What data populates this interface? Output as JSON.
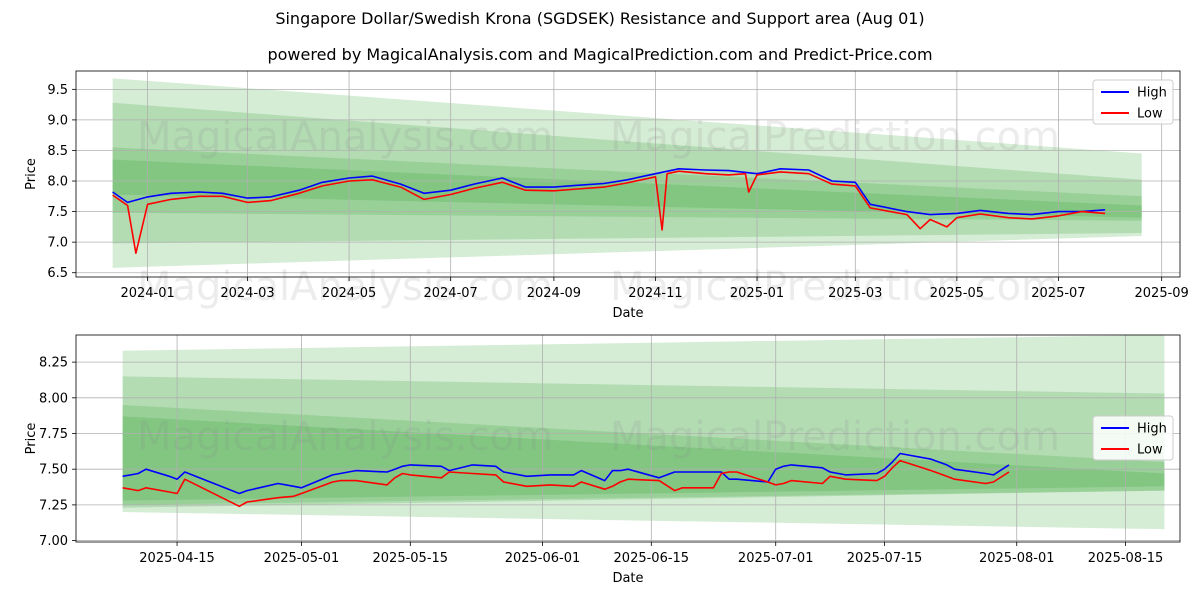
{
  "title": "Singapore Dollar/Swedish Krona (SGDSEK) Resistance and Support area (Aug 01)",
  "subtitle": "powered by MagicalAnalysis.com and MagicalPrediction.com and Predict-Price.com",
  "watermarks": [
    "MagicalAnalysis.com",
    "MagicalPrediction.com"
  ],
  "colors": {
    "high": "#0000ff",
    "low": "#ff0000",
    "band": "#2ca02c"
  },
  "chart_data": [
    {
      "type": "line",
      "xlabel": "Date",
      "ylabel": "Price",
      "grid": true,
      "legend": "top-right",
      "xlim": [
        "2023-11-19",
        "2025-09-12"
      ],
      "ylim": [
        6.43,
        9.8
      ],
      "x_ticks": [
        "2024-01",
        "2024-03",
        "2024-05",
        "2024-07",
        "2024-09",
        "2024-11",
        "2025-01",
        "2025-03",
        "2025-05",
        "2025-07",
        "2025-09"
      ],
      "y_ticks": [
        "6.5",
        "7.0",
        "7.5",
        "8.0",
        "8.5",
        "9.0",
        "9.5"
      ],
      "series": [
        {
          "name": "High",
          "x": [
            "2023-12-11",
            "2023-12-20",
            "2024-01-01",
            "2024-01-15",
            "2024-02-01",
            "2024-02-15",
            "2024-03-01",
            "2024-03-15",
            "2024-04-01",
            "2024-04-15",
            "2024-05-01",
            "2024-05-15",
            "2024-06-01",
            "2024-06-15",
            "2024-07-01",
            "2024-07-15",
            "2024-08-01",
            "2024-08-15",
            "2024-09-01",
            "2024-09-15",
            "2024-10-01",
            "2024-10-15",
            "2024-11-01",
            "2024-11-15",
            "2024-12-01",
            "2024-12-15",
            "2025-01-01",
            "2025-01-15",
            "2025-02-01",
            "2025-02-15",
            "2025-03-01",
            "2025-03-10",
            "2025-04-01",
            "2025-04-15",
            "2025-05-01",
            "2025-05-15",
            "2025-06-01",
            "2025-06-15",
            "2025-07-01",
            "2025-07-15",
            "2025-07-29"
          ],
          "values": [
            7.82,
            7.65,
            7.74,
            7.8,
            7.82,
            7.8,
            7.72,
            7.74,
            7.85,
            7.98,
            8.05,
            8.08,
            7.95,
            7.8,
            7.85,
            7.95,
            8.05,
            7.9,
            7.9,
            7.93,
            7.96,
            8.02,
            8.12,
            8.2,
            8.18,
            8.17,
            8.12,
            8.2,
            8.18,
            8.0,
            7.98,
            7.62,
            7.5,
            7.45,
            7.47,
            7.52,
            7.47,
            7.45,
            7.5,
            7.5,
            7.53
          ]
        },
        {
          "name": "Low",
          "x": [
            "2023-12-11",
            "2023-12-20",
            "2023-12-25",
            "2024-01-01",
            "2024-01-15",
            "2024-02-01",
            "2024-02-15",
            "2024-03-01",
            "2024-03-15",
            "2024-04-01",
            "2024-04-15",
            "2024-05-01",
            "2024-05-15",
            "2024-06-01",
            "2024-06-15",
            "2024-07-01",
            "2024-07-15",
            "2024-08-01",
            "2024-08-15",
            "2024-09-01",
            "2024-09-15",
            "2024-10-01",
            "2024-10-15",
            "2024-11-01",
            "2024-11-05",
            "2024-11-08",
            "2024-11-15",
            "2024-12-01",
            "2024-12-15",
            "2024-12-25",
            "2024-12-27",
            "2025-01-01",
            "2025-01-15",
            "2025-02-01",
            "2025-02-15",
            "2025-03-01",
            "2025-03-10",
            "2025-04-01",
            "2025-04-09",
            "2025-04-15",
            "2025-04-25",
            "2025-05-01",
            "2025-05-15",
            "2025-06-01",
            "2025-06-15",
            "2025-07-01",
            "2025-07-15",
            "2025-07-29"
          ],
          "values": [
            7.77,
            7.6,
            6.82,
            7.62,
            7.7,
            7.75,
            7.75,
            7.65,
            7.68,
            7.8,
            7.92,
            8.0,
            8.02,
            7.9,
            7.7,
            7.78,
            7.88,
            7.98,
            7.85,
            7.84,
            7.87,
            7.9,
            7.97,
            8.07,
            7.2,
            8.12,
            8.16,
            8.12,
            8.1,
            8.12,
            7.82,
            8.1,
            8.15,
            8.12,
            7.95,
            7.92,
            7.56,
            7.45,
            7.22,
            7.37,
            7.25,
            7.4,
            7.46,
            7.4,
            7.38,
            7.43,
            7.5,
            7.47
          ]
        }
      ]
    },
    {
      "type": "line",
      "xlabel": "Date",
      "ylabel": "Price",
      "grid": true,
      "legend": "center-right",
      "xlim": [
        "2025-04-02",
        "2025-08-22"
      ],
      "ylim": [
        6.99,
        8.44
      ],
      "x_ticks": [
        "2025-04-15",
        "2025-05-01",
        "2025-05-15",
        "2025-06-01",
        "2025-06-15",
        "2025-07-01",
        "2025-07-15",
        "2025-08-01",
        "2025-08-15"
      ],
      "y_ticks": [
        "7.00",
        "7.25",
        "7.50",
        "7.75",
        "8.00",
        "8.25"
      ],
      "series": [
        {
          "name": "High",
          "x": [
            "2025-04-08",
            "2025-04-10",
            "2025-04-11",
            "2025-04-14",
            "2025-04-15",
            "2025-04-16",
            "2025-04-23",
            "2025-04-24",
            "2025-04-28",
            "2025-04-30",
            "2025-05-01",
            "2025-05-05",
            "2025-05-06",
            "2025-05-08",
            "2025-05-12",
            "2025-05-13",
            "2025-05-14",
            "2025-05-15",
            "2025-05-19",
            "2025-05-20",
            "2025-05-23",
            "2025-05-26",
            "2025-05-27",
            "2025-05-30",
            "2025-06-02",
            "2025-06-05",
            "2025-06-06",
            "2025-06-09",
            "2025-06-10",
            "2025-06-11",
            "2025-06-12",
            "2025-06-16",
            "2025-06-18",
            "2025-06-19",
            "2025-06-23",
            "2025-06-24",
            "2025-06-25",
            "2025-06-26",
            "2025-06-30",
            "2025-07-01",
            "2025-07-02",
            "2025-07-03",
            "2025-07-07",
            "2025-07-08",
            "2025-07-10",
            "2025-07-14",
            "2025-07-15",
            "2025-07-16",
            "2025-07-17",
            "2025-07-21",
            "2025-07-23",
            "2025-07-24",
            "2025-07-28",
            "2025-07-29",
            "2025-07-31"
          ],
          "values": [
            7.45,
            7.47,
            7.5,
            7.45,
            7.43,
            7.48,
            7.33,
            7.35,
            7.4,
            7.38,
            7.37,
            7.46,
            7.47,
            7.49,
            7.48,
            7.5,
            7.52,
            7.53,
            7.52,
            7.49,
            7.53,
            7.52,
            7.48,
            7.45,
            7.46,
            7.46,
            7.49,
            7.42,
            7.49,
            7.49,
            7.5,
            7.44,
            7.48,
            7.48,
            7.48,
            7.48,
            7.43,
            7.43,
            7.41,
            7.5,
            7.52,
            7.53,
            7.51,
            7.48,
            7.46,
            7.47,
            7.5,
            7.55,
            7.61,
            7.57,
            7.53,
            7.5,
            7.47,
            7.46,
            7.53
          ]
        },
        {
          "name": "Low",
          "x": [
            "2025-04-08",
            "2025-04-10",
            "2025-04-11",
            "2025-04-14",
            "2025-04-15",
            "2025-04-16",
            "2025-04-23",
            "2025-04-24",
            "2025-04-28",
            "2025-04-30",
            "2025-05-01",
            "2025-05-05",
            "2025-05-06",
            "2025-05-08",
            "2025-05-12",
            "2025-05-13",
            "2025-05-14",
            "2025-05-15",
            "2025-05-19",
            "2025-05-20",
            "2025-05-23",
            "2025-05-26",
            "2025-05-27",
            "2025-05-30",
            "2025-06-02",
            "2025-06-05",
            "2025-06-06",
            "2025-06-09",
            "2025-06-10",
            "2025-06-11",
            "2025-06-12",
            "2025-06-16",
            "2025-06-18",
            "2025-06-19",
            "2025-06-23",
            "2025-06-24",
            "2025-06-25",
            "2025-06-26",
            "2025-06-30",
            "2025-07-01",
            "2025-07-02",
            "2025-07-03",
            "2025-07-07",
            "2025-07-08",
            "2025-07-10",
            "2025-07-14",
            "2025-07-15",
            "2025-07-16",
            "2025-07-17",
            "2025-07-21",
            "2025-07-23",
            "2025-07-24",
            "2025-07-28",
            "2025-07-29",
            "2025-07-31"
          ],
          "values": [
            7.37,
            7.35,
            7.37,
            7.34,
            7.33,
            7.43,
            7.24,
            7.27,
            7.3,
            7.31,
            7.33,
            7.41,
            7.42,
            7.42,
            7.39,
            7.44,
            7.47,
            7.46,
            7.44,
            7.48,
            7.47,
            7.46,
            7.41,
            7.38,
            7.39,
            7.38,
            7.41,
            7.36,
            7.38,
            7.41,
            7.43,
            7.42,
            7.35,
            7.37,
            7.37,
            7.47,
            7.48,
            7.48,
            7.41,
            7.39,
            7.4,
            7.42,
            7.4,
            7.45,
            7.43,
            7.42,
            7.45,
            7.51,
            7.56,
            7.49,
            7.45,
            7.43,
            7.4,
            7.41,
            7.48
          ]
        }
      ]
    }
  ]
}
